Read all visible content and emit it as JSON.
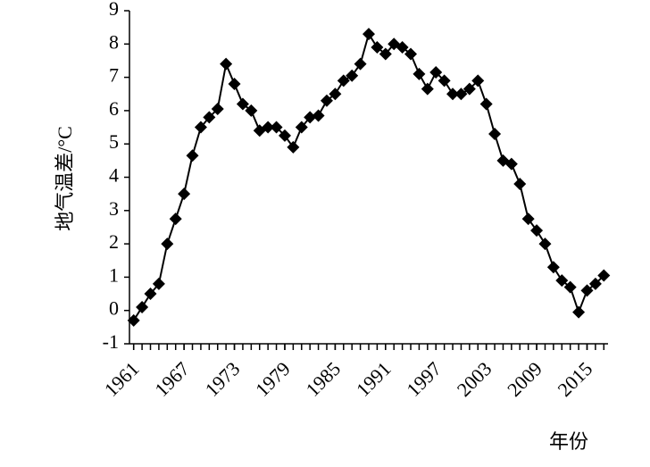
{
  "chart_data": {
    "type": "line",
    "x_label": "年份",
    "y_label": "地气温差/°C",
    "x": [
      1961,
      1962,
      1963,
      1964,
      1965,
      1966,
      1967,
      1968,
      1969,
      1970,
      1971,
      1972,
      1973,
      1974,
      1975,
      1976,
      1977,
      1978,
      1979,
      1980,
      1981,
      1982,
      1983,
      1984,
      1985,
      1986,
      1987,
      1988,
      1989,
      1990,
      1991,
      1992,
      1993,
      1994,
      1995,
      1996,
      1997,
      1998,
      1999,
      2000,
      2001,
      2002,
      2003,
      2004,
      2005,
      2006,
      2007,
      2008,
      2009,
      2010,
      2011,
      2012,
      2013,
      2014,
      2015,
      2016,
      2017
    ],
    "series": [
      {
        "color": "#000000",
        "values": [
          -0.3,
          0.1,
          0.5,
          0.8,
          2.0,
          2.75,
          3.5,
          4.65,
          5.5,
          5.8,
          6.05,
          7.4,
          6.8,
          6.2,
          6.0,
          5.4,
          5.5,
          5.5,
          5.25,
          4.9,
          5.5,
          5.8,
          5.85,
          6.3,
          6.5,
          6.9,
          7.05,
          7.4,
          8.3,
          7.9,
          7.7,
          8.0,
          7.9,
          7.7,
          7.1,
          6.65,
          7.15,
          6.9,
          6.5,
          6.5,
          6.65,
          6.9,
          6.2,
          5.3,
          4.5,
          4.4,
          3.8,
          2.75,
          2.4,
          2.0,
          1.3,
          0.9,
          0.7,
          -0.05,
          0.6,
          0.8,
          1.05
        ]
      }
    ],
    "xlim": [
      1960.5,
      2017.5
    ],
    "xticks": [
      1961,
      1967,
      1973,
      1979,
      1985,
      1991,
      1997,
      2003,
      2009,
      2015
    ],
    "ylim": [
      -1,
      9
    ],
    "yticks": [
      -1,
      0,
      1,
      2,
      3,
      4,
      5,
      6,
      7,
      8,
      9
    ],
    "grid": false
  }
}
